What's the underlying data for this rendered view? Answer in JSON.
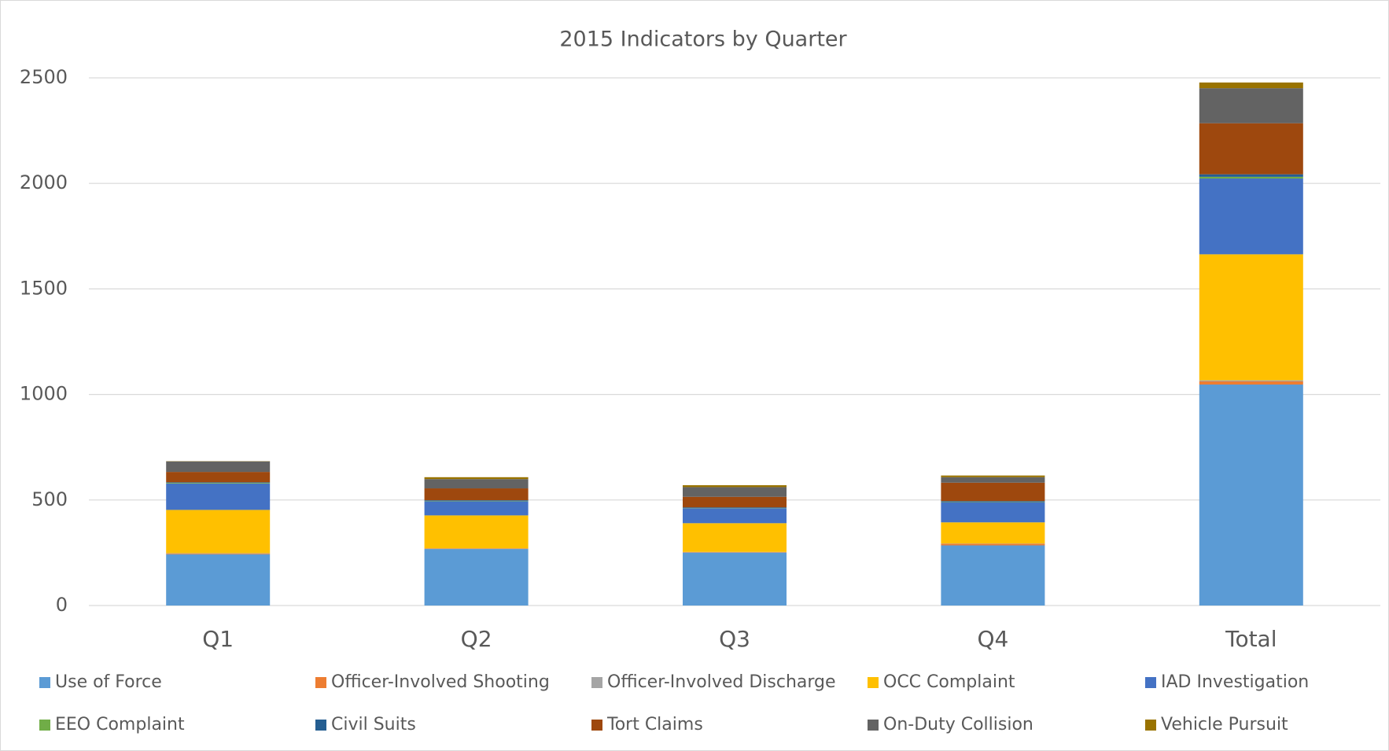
{
  "chart_data": {
    "type": "stacked_bar",
    "title": "2015 Indicators by Quarter",
    "categories": [
      "Q1",
      "Q2",
      "Q3",
      "Q4",
      "Total"
    ],
    "series": [
      {
        "name": "Use of Force",
        "color": "#5b9bd5",
        "values": [
          243,
          268,
          251,
          285,
          1047
        ]
      },
      {
        "name": "Officer-Involved Shooting",
        "color": "#ed7d31",
        "values": [
          3,
          2,
          2,
          8,
          15
        ]
      },
      {
        "name": "Officer-Involved Discharge",
        "color": "#a5a5a5",
        "values": [
          2,
          1,
          1,
          1,
          5
        ]
      },
      {
        "name": "OCC Complaint",
        "color": "#ffc000",
        "values": [
          205,
          156,
          136,
          100,
          597
        ]
      },
      {
        "name": "IAD Investigation",
        "color": "#4472c4",
        "values": [
          125,
          67,
          71,
          96,
          359
        ]
      },
      {
        "name": "EEO Complaint",
        "color": "#70ad47",
        "values": [
          3,
          2,
          1,
          2,
          8
        ]
      },
      {
        "name": "Civil Suits",
        "color": "#255e91",
        "values": [
          3,
          3,
          3,
          3,
          12
        ]
      },
      {
        "name": "Tort Claims",
        "color": "#9e480e",
        "values": [
          49,
          56,
          50,
          87,
          242
        ]
      },
      {
        "name": "On-Duty Collision",
        "color": "#636363",
        "values": [
          50,
          44,
          46,
          26,
          166
        ]
      },
      {
        "name": "Vehicle Pursuit",
        "color": "#997300",
        "values": [
          1,
          9,
          9,
          8,
          27
        ]
      }
    ],
    "ylim": [
      0,
      2500
    ],
    "yticks": [
      0,
      500,
      1000,
      1500,
      2000,
      2500
    ],
    "grid": true,
    "legend": "bottom"
  }
}
